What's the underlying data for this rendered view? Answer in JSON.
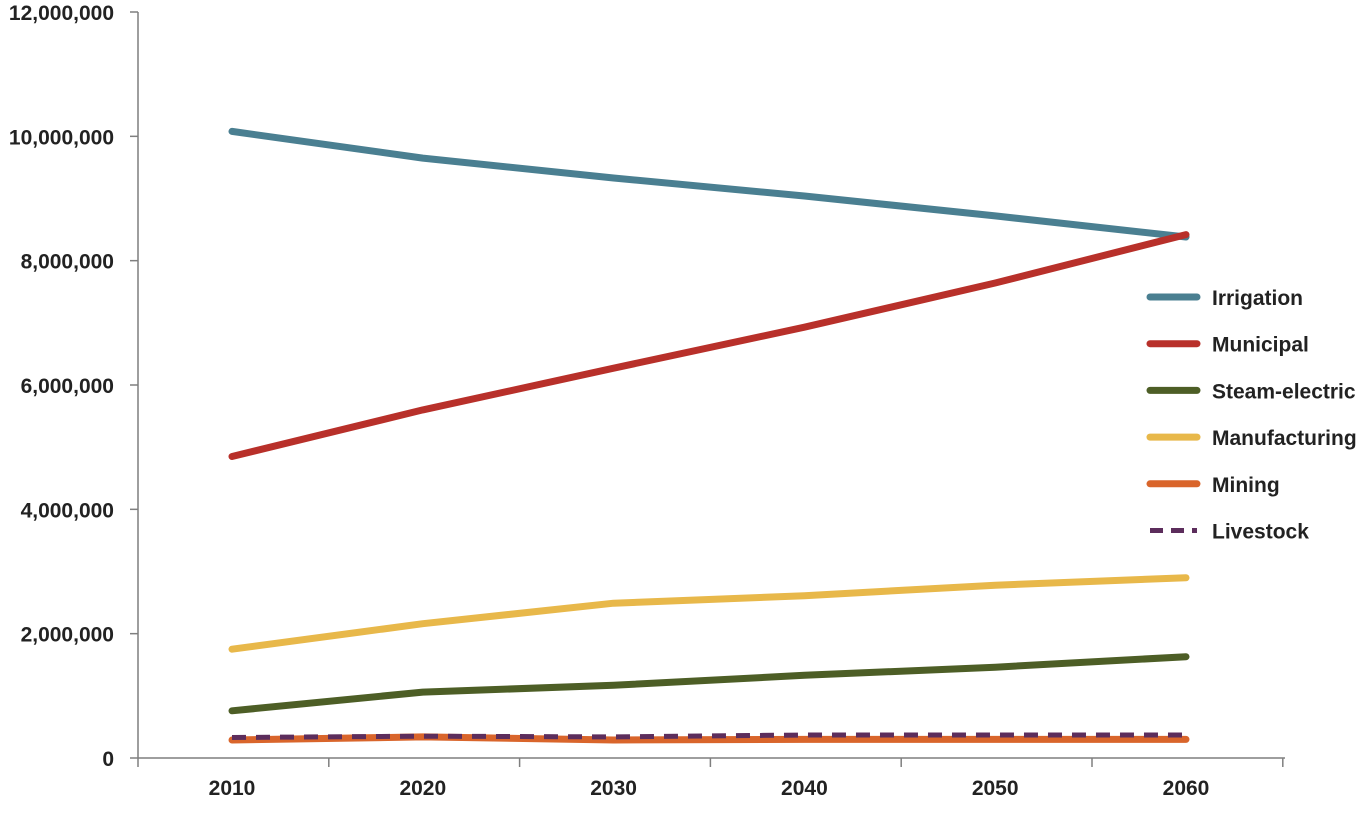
{
  "chart_data": {
    "type": "line",
    "title": "",
    "xlabel": "",
    "ylabel": "",
    "categories": [
      "2010",
      "2020",
      "2030",
      "2040",
      "2050",
      "2060"
    ],
    "y_ticks": [
      "0",
      "2,000,000",
      "4,000,000",
      "6,000,000",
      "8,000,000",
      "10,000,000",
      "12,000,000"
    ],
    "ylim": [
      0,
      12000000
    ],
    "grid": false,
    "legend_position": "right",
    "series": [
      {
        "name": "Irrigation",
        "color": "#4a7f91",
        "dashed": false,
        "values": [
          10080000,
          9650000,
          9330000,
          9040000,
          8720000,
          8380000
        ]
      },
      {
        "name": "Municipal",
        "color": "#b8302a",
        "dashed": false,
        "values": [
          4850000,
          5600000,
          6270000,
          6930000,
          7640000,
          8420000
        ]
      },
      {
        "name": "Steam-electric",
        "color": "#4d5e26",
        "dashed": false,
        "values": [
          760000,
          1060000,
          1170000,
          1330000,
          1460000,
          1630000
        ]
      },
      {
        "name": "Manufacturing",
        "color": "#e8b84a",
        "dashed": false,
        "values": [
          1750000,
          2160000,
          2490000,
          2610000,
          2780000,
          2900000
        ]
      },
      {
        "name": "Mining",
        "color": "#d9652b",
        "dashed": false,
        "values": [
          290000,
          340000,
          290000,
          300000,
          300000,
          300000
        ]
      },
      {
        "name": "Livestock",
        "color": "#5c2d5c",
        "dashed": true,
        "values": [
          330000,
          350000,
          340000,
          370000,
          370000,
          370000
        ]
      }
    ]
  }
}
